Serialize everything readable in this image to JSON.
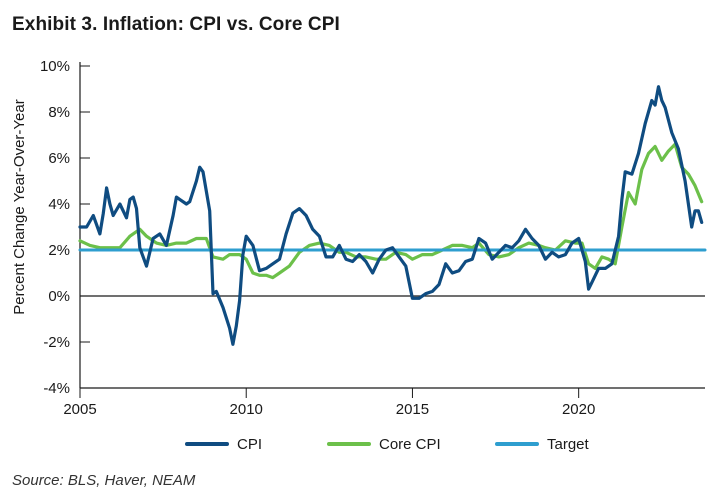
{
  "title": "Exhibit 3. Inflation: CPI vs. Core CPI",
  "source": "Source: BLS, Haver, NEAM",
  "colors": {
    "cpi": "#0f4c81",
    "core": "#6cc04a",
    "target": "#2e9ecf",
    "axis": "#1a1a1a"
  },
  "chart_data": {
    "type": "line",
    "title": "Exhibit 3. Inflation: CPI vs. Core CPI",
    "xlabel": "",
    "ylabel": "Percent Change Year-Over-Year",
    "xlim": [
      2005,
      2023.8
    ],
    "ylim": [
      -4,
      10
    ],
    "x_ticks": [
      2005,
      2010,
      2015,
      2020
    ],
    "x_tick_labels": [
      "2005",
      "2010",
      "2015",
      "2020"
    ],
    "y_ticks": [
      -4,
      -2,
      0,
      2,
      4,
      6,
      8,
      10
    ],
    "y_tick_labels": [
      "-4%",
      "-2%",
      "0%",
      "2%",
      "4%",
      "6%",
      "8%",
      "10%"
    ],
    "legend_position": "bottom",
    "series": [
      {
        "name": "CPI",
        "x": [
          2005.0,
          2005.2,
          2005.4,
          2005.6,
          2005.7,
          2005.8,
          2005.9,
          2006.0,
          2006.2,
          2006.4,
          2006.5,
          2006.6,
          2006.7,
          2006.8,
          2007.0,
          2007.2,
          2007.4,
          2007.6,
          2007.8,
          2007.9,
          2008.0,
          2008.2,
          2008.3,
          2008.5,
          2008.6,
          2008.7,
          2008.9,
          2009.0,
          2009.1,
          2009.3,
          2009.5,
          2009.6,
          2009.7,
          2009.8,
          2009.9,
          2010.0,
          2010.2,
          2010.4,
          2010.6,
          2010.8,
          2011.0,
          2011.2,
          2011.4,
          2011.6,
          2011.8,
          2012.0,
          2012.2,
          2012.4,
          2012.6,
          2012.8,
          2013.0,
          2013.2,
          2013.4,
          2013.6,
          2013.8,
          2014.0,
          2014.2,
          2014.4,
          2014.6,
          2014.8,
          2015.0,
          2015.2,
          2015.4,
          2015.6,
          2015.8,
          2016.0,
          2016.2,
          2016.4,
          2016.6,
          2016.8,
          2017.0,
          2017.2,
          2017.4,
          2017.6,
          2017.8,
          2018.0,
          2018.2,
          2018.4,
          2018.6,
          2018.8,
          2019.0,
          2019.2,
          2019.4,
          2019.6,
          2019.8,
          2020.0,
          2020.2,
          2020.3,
          2020.4,
          2020.6,
          2020.8,
          2021.0,
          2021.2,
          2021.3,
          2021.4,
          2021.6,
          2021.8,
          2022.0,
          2022.2,
          2022.3,
          2022.4,
          2022.5,
          2022.6,
          2022.8,
          2023.0,
          2023.2,
          2023.4,
          2023.5,
          2023.6,
          2023.7
        ],
        "values": [
          3.0,
          3.0,
          3.5,
          2.7,
          3.6,
          4.7,
          4.0,
          3.5,
          4.0,
          3.4,
          4.2,
          4.3,
          3.8,
          2.1,
          1.3,
          2.5,
          2.7,
          2.2,
          3.5,
          4.3,
          4.2,
          4.0,
          4.1,
          5.0,
          5.6,
          5.4,
          3.7,
          0.1,
          0.2,
          -0.5,
          -1.4,
          -2.1,
          -1.3,
          -0.2,
          1.8,
          2.6,
          2.2,
          1.1,
          1.2,
          1.4,
          1.6,
          2.7,
          3.6,
          3.8,
          3.5,
          2.9,
          2.6,
          1.7,
          1.7,
          2.2,
          1.6,
          1.5,
          1.8,
          1.5,
          1.0,
          1.6,
          2.0,
          2.1,
          1.7,
          1.3,
          -0.1,
          -0.1,
          0.1,
          0.2,
          0.5,
          1.4,
          1.0,
          1.1,
          1.5,
          1.6,
          2.5,
          2.3,
          1.6,
          1.9,
          2.2,
          2.1,
          2.4,
          2.9,
          2.5,
          2.2,
          1.6,
          1.9,
          1.7,
          1.8,
          2.3,
          2.5,
          1.5,
          0.3,
          0.6,
          1.2,
          1.2,
          1.4,
          2.6,
          4.2,
          5.4,
          5.3,
          6.2,
          7.5,
          8.5,
          8.3,
          9.1,
          8.5,
          8.2,
          7.1,
          6.4,
          5.0,
          3.0,
          3.7,
          3.7,
          3.2
        ]
      },
      {
        "name": "Core CPI",
        "x": [
          2005.0,
          2005.3,
          2005.6,
          2005.9,
          2006.2,
          2006.5,
          2006.8,
          2007.0,
          2007.3,
          2007.6,
          2007.9,
          2008.2,
          2008.5,
          2008.8,
          2009.0,
          2009.3,
          2009.5,
          2009.8,
          2010.0,
          2010.2,
          2010.4,
          2010.6,
          2010.8,
          2011.0,
          2011.3,
          2011.6,
          2011.9,
          2012.2,
          2012.5,
          2012.8,
          2013.0,
          2013.3,
          2013.6,
          2013.9,
          2014.2,
          2014.5,
          2014.8,
          2015.0,
          2015.3,
          2015.6,
          2015.9,
          2016.2,
          2016.5,
          2016.8,
          2017.0,
          2017.3,
          2017.6,
          2017.9,
          2018.2,
          2018.5,
          2018.8,
          2019.0,
          2019.3,
          2019.6,
          2019.9,
          2020.1,
          2020.3,
          2020.5,
          2020.7,
          2020.9,
          2021.1,
          2021.3,
          2021.5,
          2021.7,
          2021.9,
          2022.1,
          2022.3,
          2022.5,
          2022.7,
          2022.9,
          2023.1,
          2023.3,
          2023.5,
          2023.7
        ],
        "values": [
          2.4,
          2.2,
          2.1,
          2.1,
          2.1,
          2.6,
          2.9,
          2.6,
          2.3,
          2.2,
          2.3,
          2.3,
          2.5,
          2.5,
          1.7,
          1.6,
          1.8,
          1.8,
          1.6,
          1.0,
          0.9,
          0.9,
          0.8,
          1.0,
          1.3,
          1.9,
          2.2,
          2.3,
          2.2,
          1.9,
          1.9,
          1.7,
          1.7,
          1.6,
          1.6,
          1.9,
          1.8,
          1.6,
          1.8,
          1.8,
          2.0,
          2.2,
          2.2,
          2.1,
          2.3,
          1.8,
          1.7,
          1.8,
          2.1,
          2.3,
          2.2,
          2.1,
          2.0,
          2.4,
          2.3,
          2.3,
          1.4,
          1.2,
          1.7,
          1.6,
          1.4,
          3.0,
          4.5,
          4.0,
          5.5,
          6.2,
          6.5,
          5.9,
          6.3,
          6.6,
          5.6,
          5.3,
          4.8,
          4.1
        ]
      },
      {
        "name": "Target",
        "x": [
          2005.0,
          2023.8
        ],
        "values": [
          2.0,
          2.0
        ]
      }
    ]
  }
}
